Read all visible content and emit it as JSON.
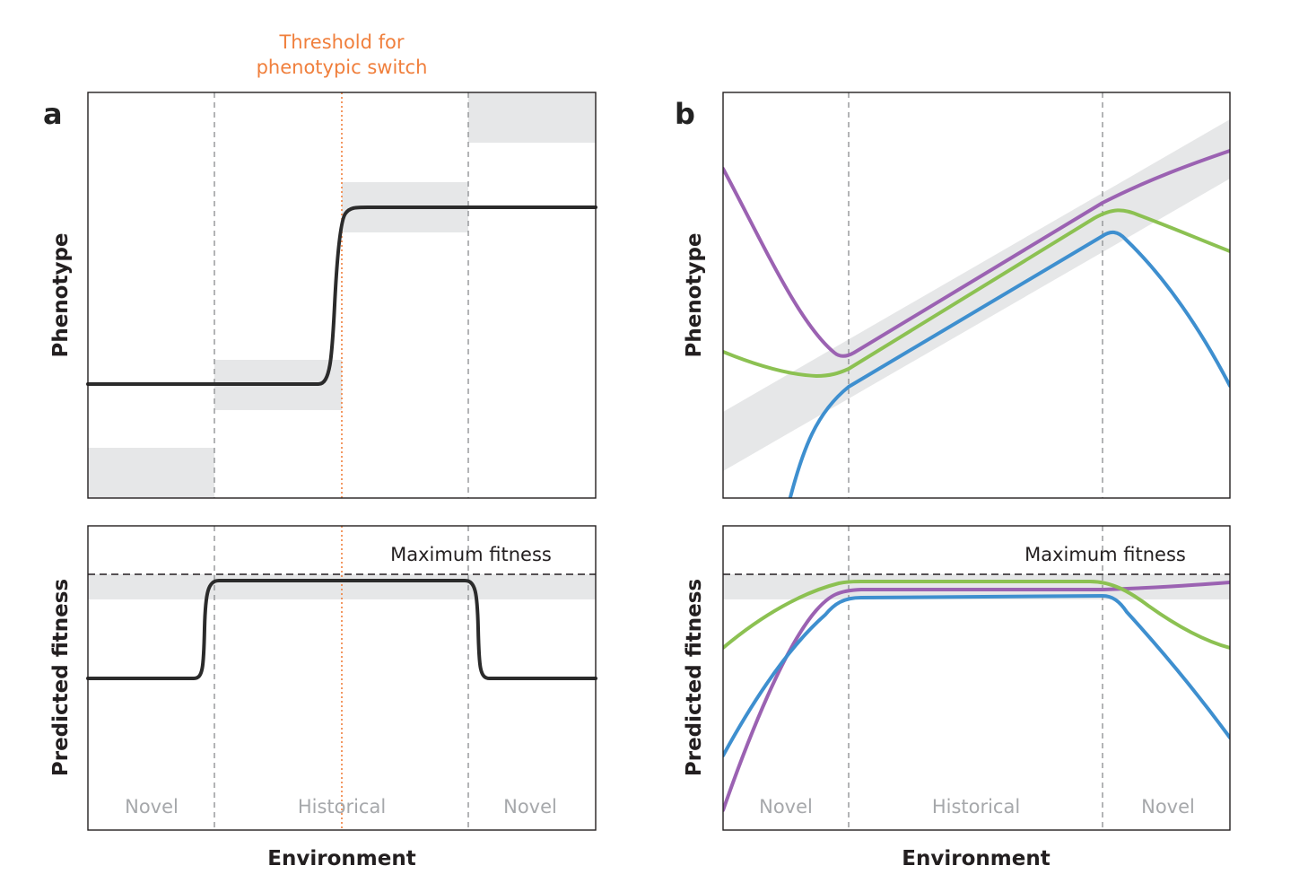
{
  "threshold": {
    "line1": "Threshold for",
    "line2": "phenotypic switch",
    "color": "#f07f3c"
  },
  "panel_a": {
    "letter": "a",
    "top_ylabel": "Phenotype",
    "bottom_ylabel": "Predicted fitness",
    "xlabel": "Environment",
    "max_fitness_label": "Maximum fitness",
    "regions": [
      "Novel",
      "Historical",
      "Novel"
    ],
    "curve_color": "#2b2b2b"
  },
  "panel_b": {
    "letter": "b",
    "top_ylabel": "Phenotype",
    "bottom_ylabel": "Predicted fitness",
    "xlabel": "Environment",
    "max_fitness_label": "Maximum fitness",
    "regions": [
      "Novel",
      "Historical",
      "Novel"
    ],
    "series_colors": {
      "purple": "#9b62b2",
      "green": "#8cc152",
      "blue": "#3e8fcf"
    }
  },
  "colors": {
    "band": "#e6e7e8",
    "frame": "#231f20",
    "region_text": "#a6a8ab"
  }
}
